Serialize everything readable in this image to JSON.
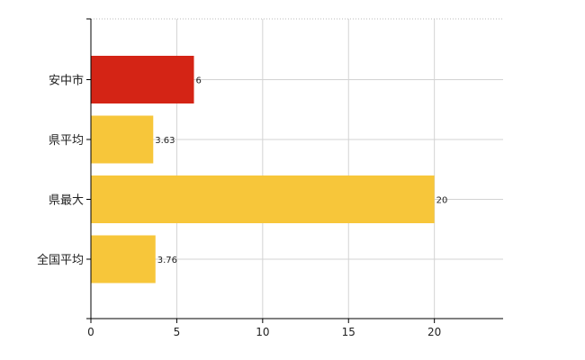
{
  "chart_data": {
    "type": "bar",
    "orientation": "horizontal",
    "categories": [
      "安中市",
      "県平均",
      "県最大",
      "全国平均"
    ],
    "values": [
      6,
      3.63,
      20,
      3.76
    ],
    "value_labels": [
      "6",
      "3.63",
      "20",
      "3.76"
    ],
    "colors": [
      "#d42415",
      "#f7c63a",
      "#f7c63a",
      "#f7c63a"
    ],
    "xlim": [
      0,
      24
    ],
    "xticks": [
      0,
      5,
      10,
      15,
      20
    ],
    "xtick_labels": [
      "0",
      "5",
      "10",
      "15",
      "20"
    ],
    "grid": true,
    "title": "",
    "xlabel": "",
    "ylabel": ""
  }
}
